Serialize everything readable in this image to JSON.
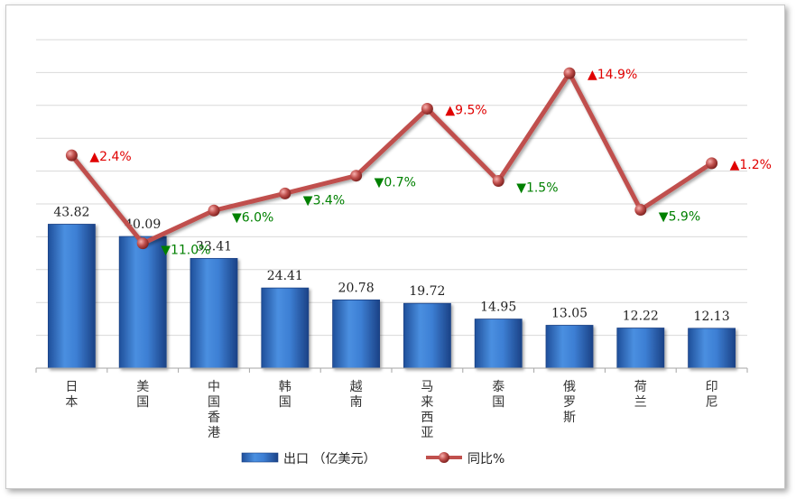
{
  "chart_data": {
    "type": "bar",
    "categories": [
      "日本",
      "美国",
      "中国香港",
      "韩国",
      "越南",
      "马来西亚",
      "泰国",
      "俄罗斯",
      "荷兰",
      "印尼"
    ],
    "series": [
      {
        "name": "出口 （亿美元）",
        "type": "bar",
        "values": [
          43.82,
          40.09,
          33.41,
          24.41,
          20.78,
          19.72,
          14.95,
          13.05,
          12.22,
          12.13
        ],
        "color": "#3a7fd5"
      },
      {
        "name": "同比%",
        "type": "line",
        "values": [
          2.4,
          -11.0,
          -6.0,
          -3.4,
          -0.7,
          9.5,
          -1.5,
          14.9,
          -5.9,
          1.2
        ],
        "labels": [
          "▲2.4%",
          "▼11.0%",
          "▼6.0%",
          "▼3.4%",
          "▼0.7%",
          "▲9.5%",
          "▼1.5%",
          "▲14.9%",
          "▼5.9%",
          "▲1.2%"
        ],
        "color": "#c0504d"
      }
    ],
    "bar_labels": [
      "43.82",
      "40.09",
      "33.41",
      "24.41",
      "20.78",
      "19.72",
      "14.95",
      "13.05",
      "12.22",
      "12.13"
    ],
    "bar_ylim": [
      0,
      100
    ],
    "line_ylim": [
      -30,
      20
    ],
    "up_color": "#e00000",
    "down_color": "#008000",
    "grid": true,
    "legend_position": "bottom"
  }
}
